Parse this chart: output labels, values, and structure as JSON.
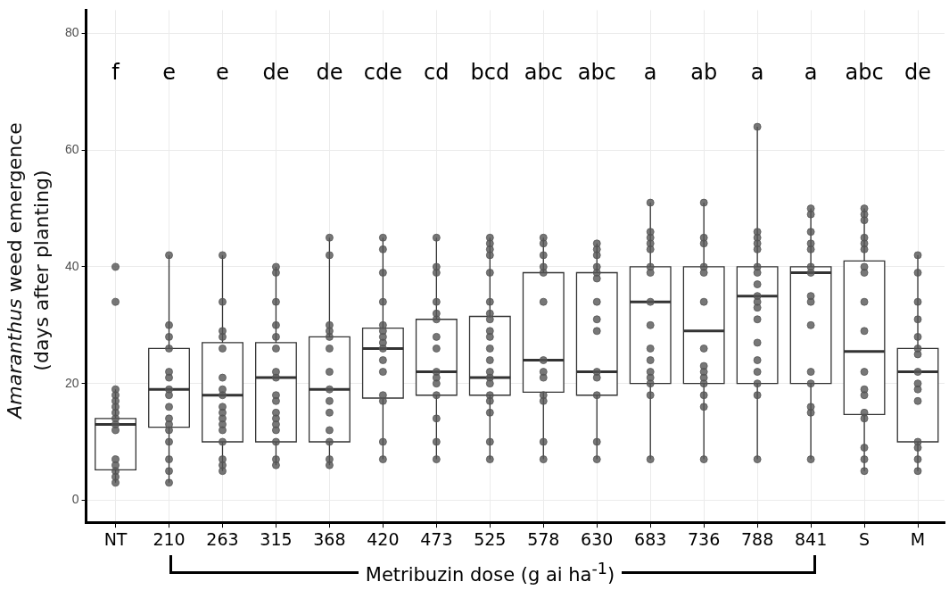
{
  "chart_data": {
    "type": "box",
    "ylabel": "Amaranthus weed emergence (days after planting)",
    "xlabel": "Metribuzin dose (g ai ha$^{-1}$)",
    "categories": [
      "NT",
      "210",
      "263",
      "315",
      "368",
      "420",
      "473",
      "525",
      "578",
      "630",
      "683",
      "736",
      "788",
      "841",
      "S",
      "M"
    ],
    "ylim": [
      -3.8,
      84
    ],
    "yticks": [
      0,
      20,
      40,
      60,
      80
    ],
    "grid": true,
    "series": [
      {
        "type": "box",
        "color": "#ffffff",
        "boxes": [
          {
            "low": 3,
            "q1": 5.2,
            "median": 13,
            "q3": 14,
            "high": 19
          },
          {
            "low": 3,
            "q1": 12.5,
            "median": 19,
            "q3": 26,
            "high": 42
          },
          {
            "low": 5,
            "q1": 10,
            "median": 18,
            "q3": 27,
            "high": 42
          },
          {
            "low": 6,
            "q1": 10,
            "median": 21,
            "q3": 27,
            "high": 40
          },
          {
            "low": 6,
            "q1": 10,
            "median": 19,
            "q3": 28,
            "high": 45
          },
          {
            "low": 7,
            "q1": 17.5,
            "median": 26,
            "q3": 29.5,
            "high": 45
          },
          {
            "low": 7,
            "q1": 18,
            "median": 22,
            "q3": 31,
            "high": 45
          },
          {
            "low": 7,
            "q1": 18,
            "median": 21,
            "q3": 31.5,
            "high": 45
          },
          {
            "low": 7,
            "q1": 18.5,
            "median": 24,
            "q3": 39,
            "high": 45
          },
          {
            "low": 7,
            "q1": 18,
            "median": 22,
            "q3": 39,
            "high": 44
          },
          {
            "low": 7,
            "q1": 20,
            "median": 34,
            "q3": 40,
            "high": 51
          },
          {
            "low": 7,
            "q1": 20,
            "median": 29,
            "q3": 40,
            "high": 51
          },
          {
            "low": 7,
            "q1": 20,
            "median": 35,
            "q3": 40,
            "high": 64
          },
          {
            "low": 7,
            "q1": 20,
            "median": 39,
            "q3": 40,
            "high": 50
          },
          {
            "low": 5,
            "q1": 14.7,
            "median": 25.5,
            "q3": 41,
            "high": 50
          },
          {
            "low": 5,
            "q1": 10,
            "median": 22,
            "q3": 26,
            "high": 42
          }
        ]
      },
      {
        "type": "scatter",
        "color": "#555555",
        "marker": "circle",
        "x": [
          "NT",
          "NT",
          "NT",
          "NT",
          "NT",
          "NT",
          "NT",
          "NT",
          "NT",
          "NT",
          "NT",
          "NT",
          "NT",
          "NT",
          "NT",
          "210",
          "210",
          "210",
          "210",
          "210",
          "210",
          "210",
          "210",
          "210",
          "210",
          "210",
          "210",
          "210",
          "210",
          "210",
          "210",
          "263",
          "263",
          "263",
          "263",
          "263",
          "263",
          "263",
          "263",
          "263",
          "263",
          "263",
          "263",
          "263",
          "263",
          "263",
          "263",
          "263",
          "315",
          "315",
          "315",
          "315",
          "315",
          "315",
          "315",
          "315",
          "315",
          "315",
          "315",
          "315",
          "315",
          "315",
          "315",
          "315",
          "315",
          "368",
          "368",
          "368",
          "368",
          "368",
          "368",
          "368",
          "368",
          "368",
          "368",
          "368",
          "368",
          "368",
          "368",
          "420",
          "420",
          "420",
          "420",
          "420",
          "420",
          "420",
          "420",
          "420",
          "420",
          "420",
          "420",
          "420",
          "420",
          "420",
          "473",
          "473",
          "473",
          "473",
          "473",
          "473",
          "473",
          "473",
          "473",
          "473",
          "473",
          "473",
          "473",
          "473",
          "473",
          "525",
          "525",
          "525",
          "525",
          "525",
          "525",
          "525",
          "525",
          "525",
          "525",
          "525",
          "525",
          "525",
          "525",
          "525",
          "525",
          "525",
          "525",
          "525",
          "525",
          "578",
          "578",
          "578",
          "578",
          "578",
          "578",
          "578",
          "578",
          "578",
          "578",
          "578",
          "578",
          "578",
          "630",
          "630",
          "630",
          "630",
          "630",
          "630",
          "630",
          "630",
          "630",
          "630",
          "630",
          "630",
          "630",
          "630",
          "683",
          "683",
          "683",
          "683",
          "683",
          "683",
          "683",
          "683",
          "683",
          "683",
          "683",
          "683",
          "683",
          "683",
          "683",
          "683",
          "736",
          "736",
          "736",
          "736",
          "736",
          "736",
          "736",
          "736",
          "736",
          "736",
          "736",
          "736",
          "736",
          "736",
          "788",
          "788",
          "788",
          "788",
          "788",
          "788",
          "788",
          "788",
          "788",
          "788",
          "788",
          "788",
          "788",
          "788",
          "788",
          "788",
          "788",
          "788",
          "841",
          "841",
          "841",
          "841",
          "841",
          "841",
          "841",
          "841",
          "841",
          "841",
          "841",
          "841",
          "841",
          "841",
          "841",
          "S",
          "S",
          "S",
          "S",
          "S",
          "S",
          "S",
          "S",
          "S",
          "S",
          "S",
          "S",
          "S",
          "S",
          "S",
          "S",
          "S",
          "S",
          "M",
          "M",
          "M",
          "M",
          "M",
          "M",
          "M",
          "M",
          "M",
          "M",
          "M",
          "M",
          "M",
          "M",
          "M"
        ],
        "values": [
          40,
          34,
          19,
          18,
          17,
          16,
          15,
          14,
          13,
          12,
          7,
          6,
          5,
          4,
          3,
          42,
          30,
          28,
          26,
          22,
          21,
          19,
          18,
          16,
          14,
          13,
          12,
          10,
          7,
          5,
          3,
          42,
          34,
          29,
          28,
          26,
          21,
          19,
          18,
          16,
          15,
          14,
          13,
          12,
          10,
          7,
          6,
          5,
          40,
          39,
          34,
          30,
          28,
          26,
          22,
          21,
          18,
          17,
          15,
          14,
          13,
          12,
          10,
          7,
          6,
          45,
          42,
          30,
          29,
          28,
          26,
          22,
          19,
          17,
          15,
          12,
          10,
          7,
          6,
          45,
          43,
          39,
          34,
          30,
          29,
          28,
          27,
          26,
          24,
          22,
          18,
          17,
          10,
          7,
          45,
          40,
          39,
          34,
          32,
          31,
          28,
          26,
          22,
          21,
          20,
          18,
          14,
          10,
          7,
          45,
          44,
          43,
          42,
          39,
          34,
          32,
          31,
          29,
          28,
          26,
          24,
          22,
          21,
          20,
          18,
          17,
          15,
          10,
          7,
          45,
          44,
          42,
          40,
          39,
          34,
          24,
          22,
          21,
          18,
          17,
          10,
          7,
          44,
          43,
          42,
          40,
          39,
          38,
          34,
          31,
          29,
          22,
          21,
          18,
          10,
          7,
          51,
          46,
          45,
          44,
          43,
          40,
          39,
          34,
          30,
          26,
          24,
          22,
          21,
          20,
          18,
          7,
          51,
          45,
          44,
          40,
          39,
          34,
          26,
          23,
          22,
          21,
          20,
          18,
          16,
          7,
          64,
          46,
          45,
          44,
          43,
          40,
          39,
          37,
          35,
          34,
          33,
          31,
          27,
          24,
          22,
          20,
          18,
          7,
          50,
          49,
          46,
          44,
          43,
          40,
          39,
          35,
          34,
          30,
          22,
          20,
          16,
          15,
          7,
          50,
          49,
          48,
          45,
          44,
          43,
          40,
          39,
          34,
          29,
          22,
          19,
          18,
          15,
          14,
          9,
          7,
          5,
          42,
          39,
          34,
          31,
          28,
          26,
          25,
          22,
          20,
          19,
          17,
          10,
          9,
          7,
          5
        ]
      }
    ],
    "annotations": [
      "f",
      "e",
      "e",
      "de",
      "de",
      "cde",
      "cd",
      "bcd",
      "abc",
      "abc",
      "a",
      "ab",
      "a",
      "a",
      "abc",
      "de"
    ]
  }
}
